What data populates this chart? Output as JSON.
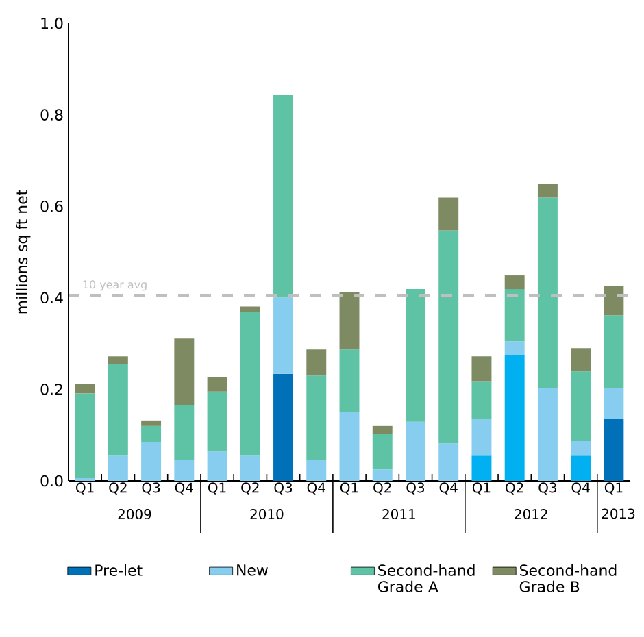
{
  "chart_data": {
    "type": "bar",
    "stacked": true,
    "ylabel": "millions sq ft net",
    "categories": [
      "Q1",
      "Q2",
      "Q3",
      "Q4",
      "Q1",
      "Q2",
      "Q3",
      "Q4",
      "Q1",
      "Q2",
      "Q3",
      "Q4",
      "Q1",
      "Q2",
      "Q3",
      "Q4",
      "Q1"
    ],
    "annotations": [
      "2009",
      "2010",
      "2011",
      "2012",
      "2013"
    ],
    "series": [
      {
        "name": "Pre-let",
        "color": "#0070b8",
        "colors": [
          "#0070b8",
          "#0070b8",
          "#0070b8",
          "#0070b8",
          "#0070b8",
          "#0070b8",
          "#0070b8",
          "#0070b8",
          "#0070b8",
          "#0070b8",
          "#0070b8",
          "#0070b8",
          "#00b0f0",
          "#00b0f0",
          "#00b0f0",
          "#00b0f0",
          "#0070b8"
        ],
        "values": [
          0,
          0,
          0,
          0,
          0,
          0,
          0.234,
          0,
          0,
          0,
          0,
          0,
          0.055,
          0.275,
          0,
          0.055,
          0.135
        ]
      },
      {
        "name": "New",
        "color": "#87cdf0",
        "values": [
          0.006,
          0.055,
          0.085,
          0.046,
          0.064,
          0.055,
          0.167,
          0.046,
          0.15,
          0.025,
          0.129,
          0.082,
          0.08,
          0.03,
          0.203,
          0.032,
          0.068
        ]
      },
      {
        "name": "Second-hand Grade A",
        "color": "#5dc3a4",
        "values": [
          0.185,
          0.2,
          0.035,
          0.12,
          0.131,
          0.314,
          0.443,
          0.184,
          0.137,
          0.077,
          0.29,
          0.465,
          0.083,
          0.114,
          0.416,
          0.152,
          0.159
        ]
      },
      {
        "name": "Second-hand Grade B",
        "color": "#7e8a61",
        "values": [
          0.021,
          0.017,
          0.012,
          0.145,
          0.032,
          0.012,
          0,
          0.057,
          0.126,
          0.018,
          0,
          0.072,
          0.054,
          0.03,
          0.03,
          0.051,
          0.063
        ]
      }
    ],
    "ylim": [
      0,
      1.0
    ],
    "yticks": [
      {
        "value": 0,
        "label": "0.0"
      },
      {
        "value": 0.2,
        "label": "0.2"
      },
      {
        "value": 0.4,
        "label": "0.4"
      },
      {
        "value": 0.6,
        "label": "0.6"
      },
      {
        "value": 0.8,
        "label": "0.8"
      },
      {
        "value": 1.0,
        "label": "1.0"
      }
    ],
    "ref_lines": [
      {
        "axis": "y",
        "value": 0.405,
        "label": "10 year avg",
        "color": "#bfbfbf",
        "line_style": "dashed"
      }
    ],
    "legend": "bottom",
    "grid": false
  }
}
